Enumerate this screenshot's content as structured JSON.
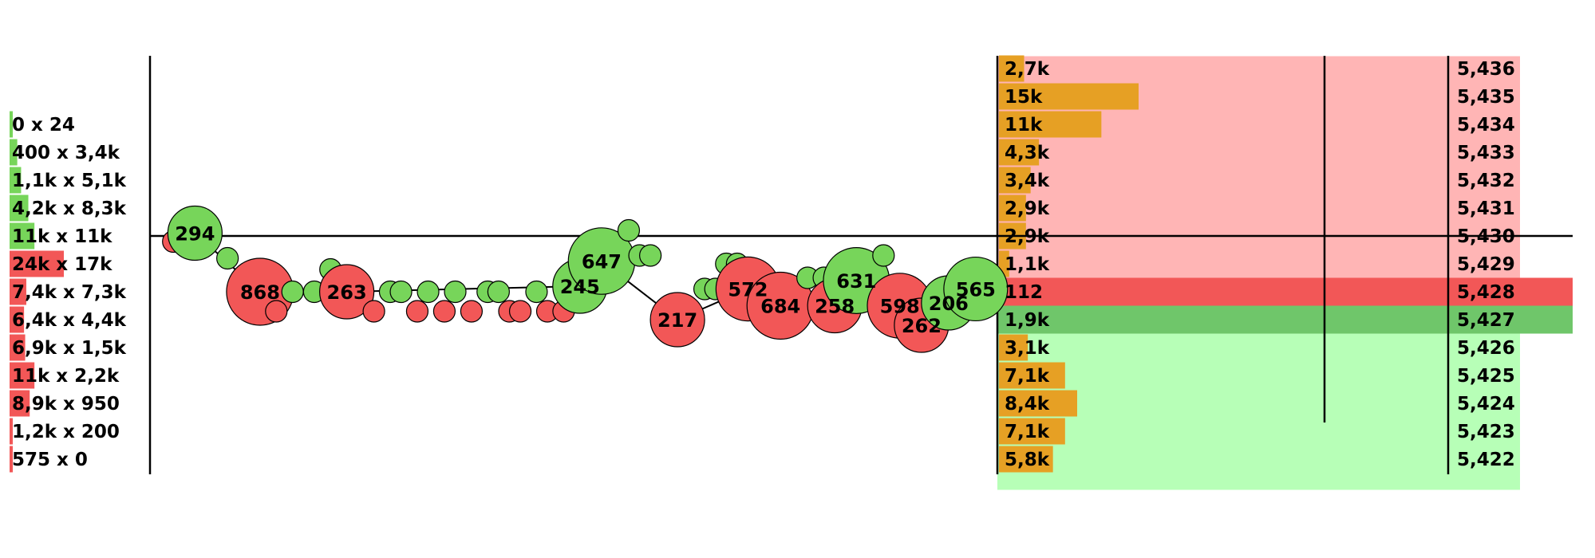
{
  "chart_data": {
    "type": "scatter",
    "title": "",
    "colors": {
      "buy": "#77d55a",
      "sell": "#f25757",
      "volume_bar": "#e6a024",
      "ask_band": "#ffb5b5",
      "bid_band": "#b7ffb7",
      "best_ask_row": "#f25757",
      "best_bid_row": "#6fc66a"
    },
    "prices": [
      "5,436",
      "5,435",
      "5,434",
      "5,433",
      "5,432",
      "5,431",
      "5,430",
      "5,429",
      "5,428",
      "5,427",
      "5,426",
      "5,425",
      "5,424",
      "5,423",
      "5,422"
    ],
    "price_levels": [
      5436,
      5435,
      5434,
      5433,
      5432,
      5431,
      5430,
      5429,
      5428,
      5427,
      5426,
      5425,
      5424,
      5423,
      5422
    ],
    "last_price": 5430,
    "best_ask": 5428,
    "best_bid": 5427,
    "order_book_sizes": [
      "2,7k",
      "15k",
      "11k",
      "4,3k",
      "3,4k",
      "2,9k",
      "2,9k",
      "1,1k",
      "112",
      "1,9k",
      "3,1k",
      "7,1k",
      "8,4k",
      "7,1k",
      "5,8k"
    ],
    "order_book_values": [
      2700,
      15000,
      11000,
      4300,
      3400,
      2900,
      2900,
      1100,
      112,
      1900,
      3100,
      7100,
      8400,
      7100,
      5800
    ],
    "order_book_max": 15000,
    "left_profile": [
      {
        "price": 5434,
        "label": "0 x 24",
        "buy": 0,
        "sell": 24
      },
      {
        "price": 5433,
        "label": "400 x 3,4k",
        "buy": 400,
        "sell": 3400
      },
      {
        "price": 5432,
        "label": "1,1k x 5,1k",
        "buy": 1100,
        "sell": 5100
      },
      {
        "price": 5431,
        "label": "4,2k x 8,3k",
        "buy": 4200,
        "sell": 8300
      },
      {
        "price": 5430,
        "label": "11k x 11k",
        "buy": 11000,
        "sell": 11000
      },
      {
        "price": 5429,
        "label": "24k x 17k",
        "buy": 24000,
        "sell": 17000
      },
      {
        "price": 5428,
        "label": "7,4k x 7,3k",
        "buy": 7400,
        "sell": 7300
      },
      {
        "price": 5427,
        "label": "6,4k x 4,4k",
        "buy": 6400,
        "sell": 4400
      },
      {
        "price": 5426,
        "label": "6,9k x 1,5k",
        "buy": 6900,
        "sell": 1500
      },
      {
        "price": 5425,
        "label": "11k x 2,2k",
        "buy": 11000,
        "sell": 2200
      },
      {
        "price": 5424,
        "label": "8,9k x 950",
        "buy": 8900,
        "sell": 950
      },
      {
        "price": 5423,
        "label": "1,2k x 200",
        "buy": 1200,
        "sell": 200
      },
      {
        "price": 5422,
        "label": "575 x 0",
        "buy": 575,
        "sell": 0
      }
    ],
    "trades": [
      {
        "t": 2,
        "p": 5429.8,
        "size": 12,
        "side": "sell"
      },
      {
        "t": 4,
        "p": 5430.1,
        "size": 294,
        "side": "buy",
        "label": "294"
      },
      {
        "t": 7,
        "p": 5429.2,
        "size": 14,
        "side": "buy"
      },
      {
        "t": 10,
        "p": 5428.0,
        "size": 868,
        "side": "sell",
        "label": "868"
      },
      {
        "t": 11.5,
        "p": 5427.3,
        "size": 14,
        "side": "sell"
      },
      {
        "t": 13,
        "p": 5428.0,
        "size": 14,
        "side": "buy"
      },
      {
        "t": 15,
        "p": 5428.0,
        "size": 14,
        "side": "buy"
      },
      {
        "t": 16.5,
        "p": 5428.8,
        "size": 12,
        "side": "buy"
      },
      {
        "t": 18,
        "p": 5428.0,
        "size": 263,
        "side": "sell",
        "label": "263"
      },
      {
        "t": 20.5,
        "p": 5427.3,
        "size": 14,
        "side": "sell"
      },
      {
        "t": 22,
        "p": 5428.0,
        "size": 14,
        "side": "buy"
      },
      {
        "t": 23,
        "p": 5428.0,
        "size": 14,
        "side": "buy"
      },
      {
        "t": 24.5,
        "p": 5427.3,
        "size": 14,
        "side": "sell"
      },
      {
        "t": 25.5,
        "p": 5428.0,
        "size": 14,
        "side": "buy"
      },
      {
        "t": 27,
        "p": 5427.3,
        "size": 14,
        "side": "sell"
      },
      {
        "t": 28,
        "p": 5428.0,
        "size": 14,
        "side": "buy"
      },
      {
        "t": 29.5,
        "p": 5427.3,
        "size": 14,
        "side": "sell"
      },
      {
        "t": 31,
        "p": 5428.0,
        "size": 14,
        "side": "buy"
      },
      {
        "t": 32,
        "p": 5428.0,
        "size": 14,
        "side": "buy"
      },
      {
        "t": 33,
        "p": 5427.3,
        "size": 14,
        "side": "sell"
      },
      {
        "t": 34,
        "p": 5427.3,
        "size": 14,
        "side": "sell"
      },
      {
        "t": 35.5,
        "p": 5428.0,
        "size": 14,
        "side": "buy"
      },
      {
        "t": 36.5,
        "p": 5427.3,
        "size": 14,
        "side": "sell"
      },
      {
        "t": 38,
        "p": 5427.3,
        "size": 14,
        "side": "sell"
      },
      {
        "t": 39.5,
        "p": 5428.2,
        "size": 245,
        "side": "buy",
        "label": "245"
      },
      {
        "t": 41.5,
        "p": 5429.1,
        "size": 647,
        "side": "buy",
        "label": "647"
      },
      {
        "t": 44,
        "p": 5430.2,
        "size": 12,
        "side": "buy"
      },
      {
        "t": 45,
        "p": 5429.3,
        "size": 12,
        "side": "buy"
      },
      {
        "t": 46,
        "p": 5429.3,
        "size": 12,
        "side": "buy"
      },
      {
        "t": 48.5,
        "p": 5427.0,
        "size": 217,
        "side": "sell",
        "label": "217"
      },
      {
        "t": 51,
        "p": 5428.1,
        "size": 12,
        "side": "buy"
      },
      {
        "t": 52,
        "p": 5428.1,
        "size": 12,
        "side": "buy"
      },
      {
        "t": 53,
        "p": 5429.0,
        "size": 12,
        "side": "buy"
      },
      {
        "t": 54,
        "p": 5429.0,
        "size": 12,
        "side": "buy"
      },
      {
        "t": 55,
        "p": 5428.1,
        "size": 572,
        "side": "sell",
        "label": "572"
      },
      {
        "t": 58,
        "p": 5427.5,
        "size": 684,
        "side": "sell",
        "label": "684"
      },
      {
        "t": 60.5,
        "p": 5428.5,
        "size": 12,
        "side": "buy"
      },
      {
        "t": 62,
        "p": 5428.5,
        "size": 12,
        "side": "buy"
      },
      {
        "t": 63,
        "p": 5427.5,
        "size": 258,
        "side": "sell",
        "label": "258"
      },
      {
        "t": 65,
        "p": 5428.4,
        "size": 631,
        "side": "buy",
        "label": "631"
      },
      {
        "t": 67.5,
        "p": 5429.3,
        "size": 12,
        "side": "buy"
      },
      {
        "t": 69,
        "p": 5427.5,
        "size": 598,
        "side": "sell",
        "label": "598"
      },
      {
        "t": 71,
        "p": 5426.8,
        "size": 262,
        "side": "sell",
        "label": "262"
      },
      {
        "t": 73.5,
        "p": 5427.6,
        "size": 206,
        "side": "buy",
        "label": "206"
      },
      {
        "t": 76,
        "p": 5428.1,
        "size": 565,
        "side": "buy",
        "label": "565"
      }
    ],
    "t_range": [
      0,
      78
    ],
    "price_range": [
      5421.2,
      5436.9
    ],
    "grid": false,
    "legend": "none"
  }
}
